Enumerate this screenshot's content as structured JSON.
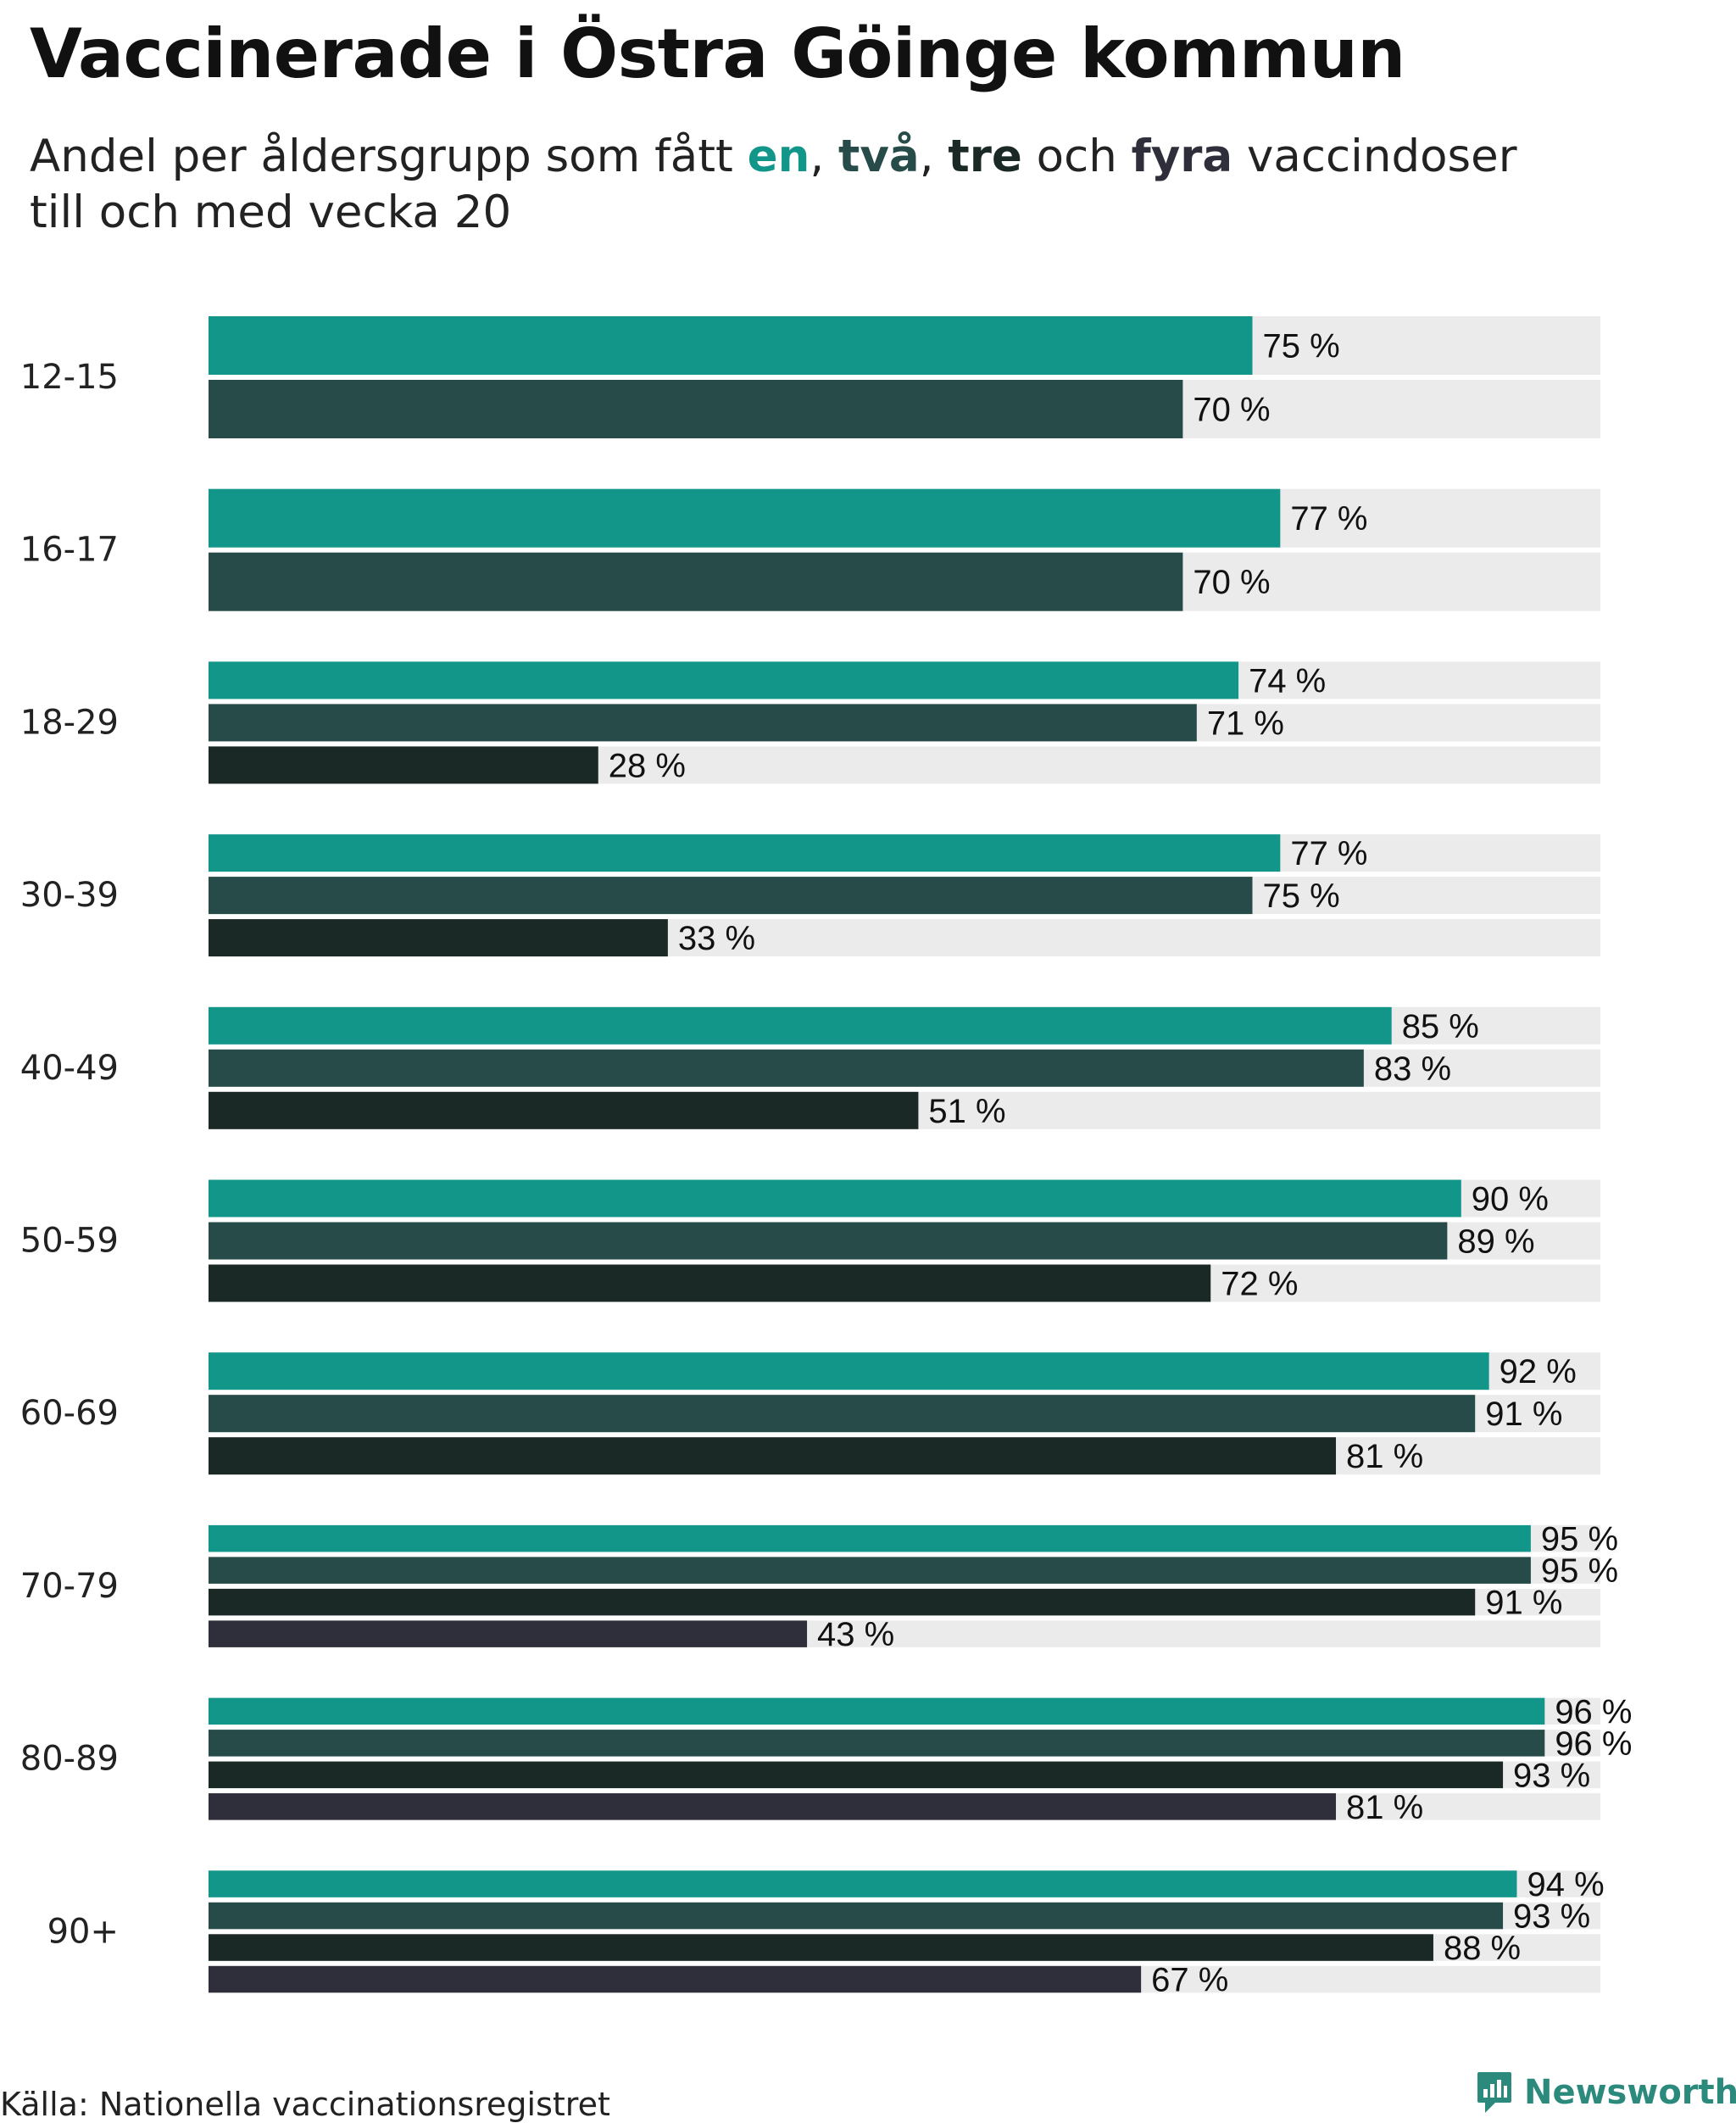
{
  "title": "Vaccinerade i Östra Göinge kommun",
  "subtitle": {
    "part1": "Andel per åldersgrupp som fått ",
    "kw1": "en",
    "sep1": ", ",
    "kw2": "två",
    "sep2": ", ",
    "kw3": "tre",
    "sep3": " och ",
    "kw4": "fyra",
    "part2": " vaccindoser",
    "line2": "till och med vecka 20"
  },
  "source": "Källa: Nationella vaccinationsregistret",
  "brand": "Newsworthy",
  "colors": {
    "dose1": "#13968a",
    "dose2": "#264b48",
    "dose3": "#1a2826",
    "dose4": "#2f2f3b",
    "track": "#ebebeb",
    "brand": "#2b8a7c"
  },
  "chart_data": {
    "type": "bar",
    "orientation": "horizontal",
    "categories": [
      "12-15",
      "16-17",
      "18-29",
      "30-39",
      "40-49",
      "50-59",
      "60-69",
      "70-79",
      "80-89",
      "90+"
    ],
    "series": [
      {
        "name": "en",
        "values": [
          75,
          77,
          74,
          77,
          85,
          90,
          92,
          95,
          96,
          94
        ]
      },
      {
        "name": "två",
        "values": [
          70,
          70,
          71,
          75,
          83,
          89,
          91,
          95,
          96,
          93
        ]
      },
      {
        "name": "tre",
        "values": [
          null,
          null,
          28,
          33,
          51,
          72,
          81,
          91,
          93,
          88
        ]
      },
      {
        "name": "fyra",
        "values": [
          null,
          null,
          null,
          null,
          null,
          null,
          null,
          43,
          81,
          67
        ]
      }
    ],
    "xlim": [
      0,
      100
    ],
    "value_suffix": " %",
    "grid": false
  }
}
